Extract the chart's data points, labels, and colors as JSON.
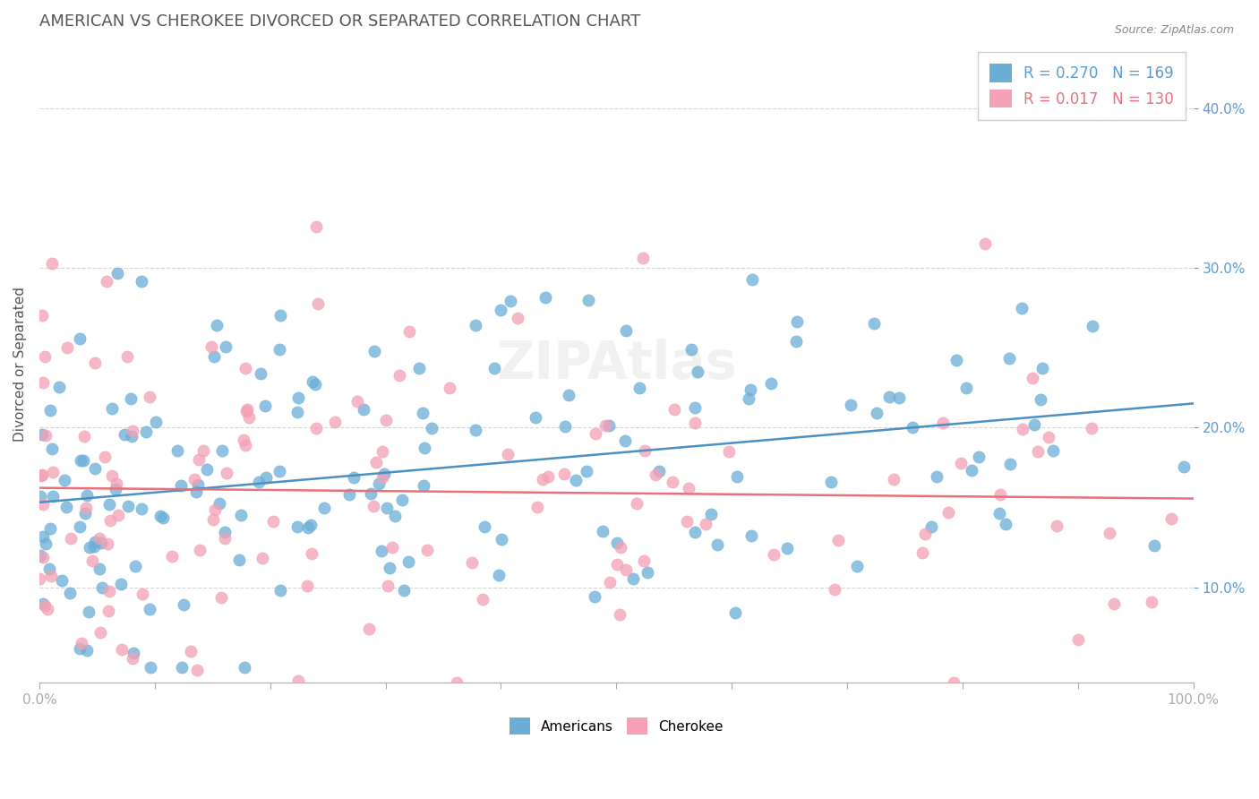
{
  "title": "AMERICAN VS CHEROKEE DIVORCED OR SEPARATED CORRELATION CHART",
  "source_text": "Source: ZipAtlas.com",
  "ylabel": "Divorced or Separated",
  "legend_blue_r": "R = 0.270",
  "legend_blue_n": "N = 169",
  "legend_pink_r": "R = 0.017",
  "legend_pink_n": "N = 130",
  "legend_blue_label": "Americans",
  "legend_pink_label": "Cherokee",
  "color_blue": "#6aaed6",
  "color_pink": "#f4a0b5",
  "line_color_blue": "#4a90c4",
  "line_color_pink": "#e8707a",
  "background_color": "#ffffff",
  "title_color": "#555555",
  "title_fontsize": 13,
  "ytick_values": [
    0.1,
    0.2,
    0.3,
    0.4
  ],
  "xlim": [
    0.0,
    1.0
  ],
  "ylim": [
    0.04,
    0.44
  ],
  "watermark": "ZIPAtlas",
  "n_americans": 169,
  "n_cherokee": 130
}
